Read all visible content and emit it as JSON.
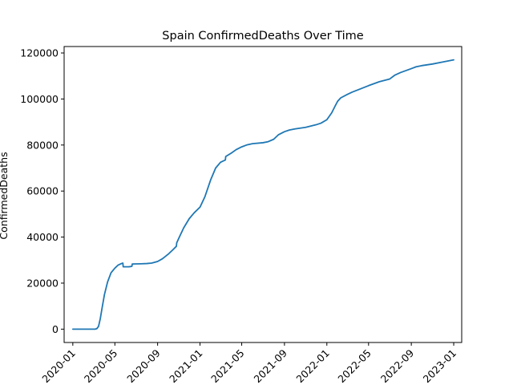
{
  "chart_data": {
    "type": "line",
    "title": "Spain  ConfirmedDeaths Over Time",
    "xlabel": "",
    "ylabel": "ConfirmedDeaths",
    "x_ticks": [
      "2020-01",
      "2020-05",
      "2020-09",
      "2021-01",
      "2021-05",
      "2021-09",
      "2022-01",
      "2022-05",
      "2022-09",
      "2023-01"
    ],
    "y_ticks": [
      0,
      20000,
      40000,
      60000,
      80000,
      100000,
      120000
    ],
    "xlim": [
      "2019-12-07",
      "2023-01-24"
    ],
    "ylim": [
      -5800,
      122800
    ],
    "grid": false,
    "legend": "none",
    "colors": {
      "line": "#1f77b4"
    },
    "series": [
      {
        "x": [
          "2020-01-01",
          "2020-02-15",
          "2020-03-05",
          "2020-03-10",
          "2020-03-15",
          "2020-03-20",
          "2020-03-25",
          "2020-04-01",
          "2020-04-10",
          "2020-04-20",
          "2020-05-01",
          "2020-05-10",
          "2020-05-20",
          "2020-05-24",
          "2020-05-25",
          "2020-06-10",
          "2020-06-15",
          "2020-06-19",
          "2020-06-20",
          "2020-07-15",
          "2020-08-01",
          "2020-08-15",
          "2020-09-01",
          "2020-09-15",
          "2020-10-01",
          "2020-10-15",
          "2020-10-25",
          "2020-10-26",
          "2020-11-01",
          "2020-11-15",
          "2020-12-01",
          "2020-12-15",
          "2021-01-01",
          "2021-01-15",
          "2021-02-01",
          "2021-02-15",
          "2021-03-01",
          "2021-03-15",
          "2021-03-16",
          "2021-04-01",
          "2021-04-15",
          "2021-05-01",
          "2021-05-15",
          "2021-06-01",
          "2021-07-01",
          "2021-07-15",
          "2021-08-01",
          "2021-08-15",
          "2021-09-01",
          "2021-09-15",
          "2021-10-01",
          "2021-11-01",
          "2021-12-01",
          "2021-12-15",
          "2022-01-01",
          "2022-01-15",
          "2022-01-25",
          "2022-02-01",
          "2022-02-10",
          "2022-03-01",
          "2022-03-15",
          "2022-04-01",
          "2022-05-01",
          "2022-06-01",
          "2022-07-01",
          "2022-07-15",
          "2022-08-01",
          "2022-09-01",
          "2022-09-15",
          "2022-10-01",
          "2022-11-01",
          "2022-12-01",
          "2023-01-01"
        ],
        "y": [
          0,
          0,
          0,
          200,
          1200,
          4500,
          9000,
          15000,
          20500,
          24500,
          26500,
          27800,
          28500,
          28700,
          27100,
          27100,
          27200,
          27300,
          28300,
          28400,
          28500,
          28700,
          29400,
          30600,
          32500,
          34500,
          36000,
          37500,
          39500,
          44000,
          48000,
          50500,
          53000,
          57500,
          65000,
          70000,
          72500,
          73500,
          75000,
          76500,
          78000,
          79200,
          80000,
          80600,
          81000,
          81400,
          82500,
          84500,
          85800,
          86500,
          87000,
          87700,
          88800,
          89500,
          91000,
          94000,
          97000,
          99000,
          100500,
          102000,
          103000,
          104000,
          105800,
          107500,
          108700,
          110300,
          111500,
          113200,
          114000,
          114500,
          115200,
          116100,
          117000
        ]
      }
    ]
  }
}
